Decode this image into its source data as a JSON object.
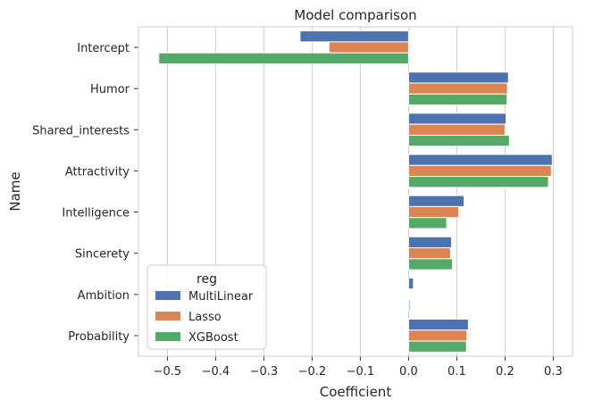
{
  "chart_data": {
    "type": "bar",
    "orientation": "horizontal",
    "title": "Model comparison",
    "xlabel": "Coefficient",
    "ylabel": "Name",
    "xlim": [
      -0.56,
      0.34
    ],
    "xticks": [
      -0.5,
      -0.4,
      -0.3,
      -0.2,
      -0.1,
      0.0,
      0.1,
      0.2,
      0.3
    ],
    "xtick_labels": [
      "−0.5",
      "−0.4",
      "−0.3",
      "−0.2",
      "−0.1",
      "0.0",
      "0.1",
      "0.2",
      "0.3"
    ],
    "grid": true,
    "categories": [
      "Intercept",
      "Humor",
      "Shared_interests",
      "Attractivity",
      "Intelligence",
      "Sincerety",
      "Ambition",
      "Probability"
    ],
    "series": [
      {
        "name": "MultiLinear",
        "color": "#4c72b0",
        "values": [
          -0.225,
          0.207,
          0.202,
          0.298,
          0.115,
          0.089,
          0.01,
          0.124
        ]
      },
      {
        "name": "Lasso",
        "color": "#dd8452",
        "values": [
          -0.165,
          0.205,
          0.2,
          0.296,
          0.104,
          0.087,
          0.0,
          0.121
        ]
      },
      {
        "name": "XGBoost",
        "color": "#55a868",
        "values": [
          -0.518,
          0.204,
          0.209,
          0.29,
          0.079,
          0.091,
          0.003,
          0.12
        ]
      }
    ],
    "legend": {
      "title": "reg",
      "position": "lower-left"
    }
  }
}
